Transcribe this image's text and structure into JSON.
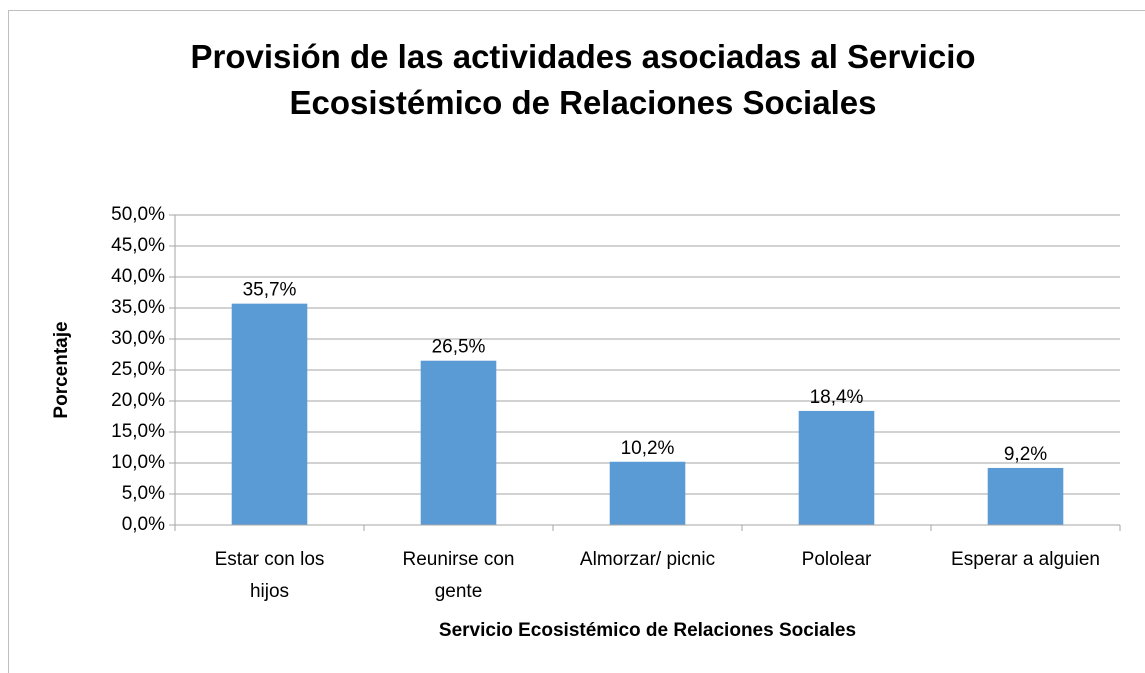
{
  "chart_data": {
    "type": "bar",
    "title": "Provisión de las actividades asociadas al Servicio Ecosistémico de Relaciones Sociales",
    "x_label": "Servicio Ecosistémico de Relaciones Sociales",
    "y_label": "Porcentaje",
    "categories": [
      "Estar con los hijos",
      "Reunirse con gente",
      "Almorzar/ picnic",
      "Pololear",
      "Esperar a alguien"
    ],
    "values": [
      35.7,
      26.5,
      10.2,
      18.4,
      9.2
    ],
    "value_labels": [
      "35,7%",
      "26,5%",
      "10,2%",
      "18,4%",
      "9,2%"
    ],
    "color": "#5b9bd5",
    "ylim": [
      0,
      50
    ],
    "yticks": [
      {
        "value": 0,
        "label": "0,0%"
      },
      {
        "value": 5,
        "label": "5,0%"
      },
      {
        "value": 10,
        "label": "10,0%"
      },
      {
        "value": 15,
        "label": "15,0%"
      },
      {
        "value": 20,
        "label": "20,0%"
      },
      {
        "value": 25,
        "label": "25,0%"
      },
      {
        "value": 30,
        "label": "30,0%"
      },
      {
        "value": 35,
        "label": "35,0%"
      },
      {
        "value": 40,
        "label": "40,0%"
      },
      {
        "value": 45,
        "label": "45,0%"
      },
      {
        "value": 50,
        "label": "50,0%"
      }
    ],
    "grid": true
  }
}
